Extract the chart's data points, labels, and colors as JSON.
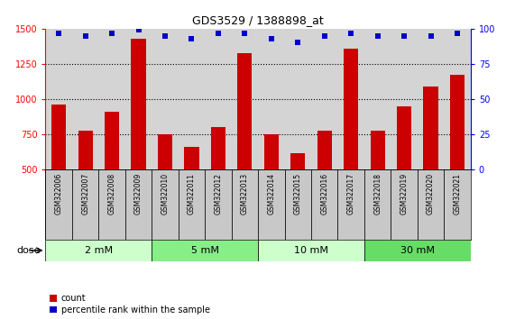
{
  "title": "GDS3529 / 1388898_at",
  "samples": [
    "GSM322006",
    "GSM322007",
    "GSM322008",
    "GSM322009",
    "GSM322010",
    "GSM322011",
    "GSM322012",
    "GSM322013",
    "GSM322014",
    "GSM322015",
    "GSM322016",
    "GSM322017",
    "GSM322018",
    "GSM322019",
    "GSM322020",
    "GSM322021"
  ],
  "counts": [
    960,
    775,
    910,
    1430,
    750,
    655,
    800,
    1325,
    750,
    610,
    775,
    1360,
    775,
    950,
    1090,
    1170
  ],
  "percentiles": [
    97,
    95,
    97,
    99,
    95,
    93,
    97,
    97,
    93,
    90,
    95,
    97,
    95,
    95,
    95,
    97
  ],
  "bar_color": "#cc0000",
  "dot_color": "#0000cc",
  "ylim_left": [
    500,
    1500
  ],
  "ylim_right": [
    0,
    100
  ],
  "yticks_left": [
    500,
    750,
    1000,
    1250,
    1500
  ],
  "yticks_right": [
    0,
    25,
    50,
    75,
    100
  ],
  "dose_groups": [
    {
      "label": "2 mM",
      "start": 0,
      "end": 4,
      "color": "#ccffcc"
    },
    {
      "label": "5 mM",
      "start": 4,
      "end": 8,
      "color": "#88ee88"
    },
    {
      "label": "10 mM",
      "start": 8,
      "end": 12,
      "color": "#ccffcc"
    },
    {
      "label": "30 mM",
      "start": 12,
      "end": 16,
      "color": "#66dd66"
    }
  ],
  "dose_label": "dose",
  "legend_count_label": "count",
  "legend_pct_label": "percentile rank within the sample",
  "plot_bg_color": "#d4d4d4",
  "label_box_color": "#c8c8c8",
  "fig_bg_color": "#ffffff"
}
